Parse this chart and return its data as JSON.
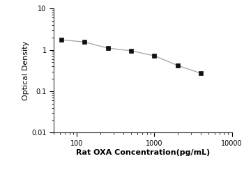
{
  "x": [
    62.5,
    125,
    250,
    500,
    1000,
    2000,
    4000
  ],
  "y": [
    1.75,
    1.55,
    1.1,
    0.95,
    0.72,
    0.42,
    0.27
  ],
  "xlabel": "Rat OXA Concentration(pg/mL)",
  "ylabel": "Optical Density",
  "xlim": [
    50,
    10000
  ],
  "ylim": [
    0.01,
    10
  ],
  "xticks": [
    100,
    1000,
    10000
  ],
  "yticks": [
    0.01,
    0.1,
    1,
    10
  ],
  "line_color": "#aaaaaa",
  "marker_color": "#111111",
  "marker": "s",
  "marker_size": 4,
  "line_width": 1.0,
  "bg_color": "#ffffff",
  "spine_color": "#333333",
  "xlabel_fontsize": 8,
  "ylabel_fontsize": 8,
  "tick_labelsize": 7
}
